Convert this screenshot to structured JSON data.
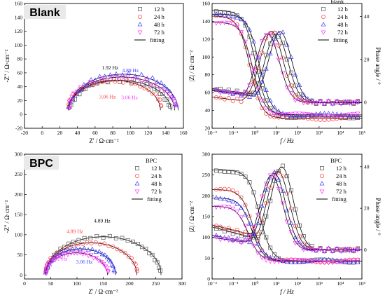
{
  "colors": {
    "12 h": "#555555",
    "24 h": "#ff3b3b",
    "48 h": "#3b3bff",
    "72 h": "#ff33ff",
    "fitting": "#000000"
  },
  "chart_data": [
    {
      "id": "blank-nyquist",
      "type": "scatter",
      "tag": "Blank",
      "xlabel": "Z' / Ω·cm⁻²",
      "ylabel": "-Z'' / Ω·cm⁻²",
      "xlim": [
        -20,
        160
      ],
      "ylim": [
        -20,
        160
      ],
      "xticks": [
        "-20",
        "0",
        "20",
        "40",
        "60",
        "80",
        "100",
        "120",
        "140",
        "160"
      ],
      "yticks": [
        "-20",
        "0",
        "20",
        "40",
        "60",
        "80",
        "100",
        "120",
        "140",
        "160"
      ],
      "series": [
        {
          "name": "12 h",
          "center": [
            88,
            6
          ],
          "radius": [
            58,
            43
          ]
        },
        {
          "name": "24 h",
          "center": [
            82,
            6
          ],
          "radius": [
            52,
            43
          ]
        },
        {
          "name": "48 h",
          "center": [
            92,
            6
          ],
          "radius": [
            62,
            52
          ]
        },
        {
          "name": "72 h",
          "center": [
            90,
            6
          ],
          "radius": [
            60,
            48
          ]
        }
      ],
      "annotations": [
        {
          "text": "4.89 Hz",
          "x": 100,
          "y": 61,
          "color": "#3b3bff"
        },
        {
          "text": "1.92 Hz",
          "x": 77,
          "y": 65,
          "color": "#000000"
        },
        {
          "text": "3.06 Hz",
          "x": 74,
          "y": 23,
          "color": "#ff3b3b"
        },
        {
          "text": "3.06 Hz",
          "x": 99,
          "y": 22,
          "color": "#ff33ff"
        }
      ]
    },
    {
      "id": "blank-bode",
      "type": "line",
      "legend_title": "blank",
      "xlabel": "f / Hz",
      "ylabel": "|Z| / Ω·cm⁻²",
      "ylabel_right": "Phase angle / °",
      "xlim_log10": [
        -2,
        5
      ],
      "xticks": [
        "10⁻²",
        "10⁻¹",
        "10⁰",
        "10¹",
        "10²",
        "10³",
        "10⁴",
        "10⁵"
      ],
      "ylim": [
        20,
        160
      ],
      "yticks": [
        "20",
        "40",
        "60",
        "80",
        "100",
        "120",
        "140",
        "160"
      ],
      "ylim_right": [
        -12,
        46
      ],
      "yticks_right": [
        "0",
        "20",
        "40"
      ],
      "series": [
        {
          "name": "12 h",
          "z_low": 152,
          "z_high": 33,
          "fz": 1.1,
          "phase_peak": 32,
          "f_peak": 10,
          "phase_start": 6.5,
          "phase_end": -4
        },
        {
          "name": "24 h",
          "z_low": 146,
          "z_high": 31,
          "fz": 0.6,
          "phase_peak": 33,
          "f_peak": 6,
          "phase_start": 2.5,
          "phase_end": -6
        },
        {
          "name": "48 h",
          "z_low": 148,
          "z_high": 35,
          "fz": 1.6,
          "phase_peak": 33,
          "f_peak": 15,
          "phase_start": 6,
          "phase_end": -6
        },
        {
          "name": "72 h",
          "z_low": 139,
          "z_high": 35,
          "fz": 0.8,
          "phase_peak": 32,
          "f_peak": 4,
          "phase_start": 5.5,
          "phase_end": -3
        }
      ]
    },
    {
      "id": "bpc-nyquist",
      "type": "scatter",
      "tag": "BPC",
      "legend_title": "BPC",
      "xlabel": "Z' / Ω·cm⁻²",
      "ylabel": "-Z'' / Ω·cm⁻²",
      "xlim": [
        0,
        300
      ],
      "ylim": [
        -10,
        300
      ],
      "xticks": [
        "0",
        "50",
        "100",
        "150",
        "200",
        "250",
        "300"
      ],
      "yticks": [
        "0",
        "50",
        "100",
        "150",
        "200",
        "250",
        "300"
      ],
      "series": [
        {
          "name": "12 h",
          "center": [
            150,
            0
          ],
          "radius": [
            110,
            95
          ]
        },
        {
          "name": "24 h",
          "center": [
            127,
            0
          ],
          "radius": [
            87,
            80
          ]
        },
        {
          "name": "48 h",
          "center": [
            107,
            0
          ],
          "radius": [
            67,
            65
          ]
        },
        {
          "name": "72 h",
          "center": [
            99,
            0
          ],
          "radius": [
            59,
            55
          ]
        }
      ],
      "annotations": [
        {
          "text": "4.89 Hz",
          "x": 148,
          "y": 130,
          "color": "#000000"
        },
        {
          "text": "4.89 Hz",
          "x": 96,
          "y": 104,
          "color": "#ff3b3b"
        },
        {
          "text": "3.06 Hz",
          "x": 114,
          "y": 28,
          "color": "#3b3bff"
        },
        {
          "text": "2.42 Hz",
          "x": 66,
          "y": 36,
          "color": "#ff33ff"
        }
      ]
    },
    {
      "id": "bpc-bode",
      "type": "line",
      "legend_title": "BPC",
      "xlabel": "f / Hz",
      "ylabel": "|Z| / Ω·cm⁻²",
      "ylabel_right": "Phase angle / °",
      "xlim_log10": [
        -2,
        5
      ],
      "xticks": [
        "10⁻²",
        "10⁻¹",
        "10⁰",
        "10¹",
        "10²",
        "10³",
        "10⁴",
        "10⁵"
      ],
      "ylim": [
        0,
        300
      ],
      "yticks": [
        "0",
        "50",
        "100",
        "150",
        "200",
        "250",
        "300"
      ],
      "ylim_right": [
        -14,
        46
      ],
      "yticks_right": [
        "0",
        "20",
        "40"
      ],
      "series": [
        {
          "name": "12 h",
          "z_low": 262,
          "z_high": 43,
          "fz": 1.7,
          "phase_peak": 40,
          "f_peak": 18,
          "phase_start": 11,
          "phase_end": -8
        },
        {
          "name": "24 h",
          "z_low": 215,
          "z_high": 43,
          "fz": 0.8,
          "phase_peak": 38,
          "f_peak": 12,
          "phase_start": 12,
          "phase_end": -6
        },
        {
          "name": "48 h",
          "z_low": 195,
          "z_high": 43,
          "fz": 0.7,
          "phase_peak": 37,
          "f_peak": 8,
          "phase_start": 7,
          "phase_end": -6
        },
        {
          "name": "72 h",
          "z_low": 175,
          "z_high": 43,
          "fz": 0.5,
          "phase_peak": 36,
          "f_peak": 6,
          "phase_start": 6,
          "phase_end": -5
        }
      ]
    }
  ],
  "legend": {
    "entries": [
      "12 h",
      "24 h",
      "48 h",
      "72 h"
    ],
    "fit_label": "fitting"
  }
}
